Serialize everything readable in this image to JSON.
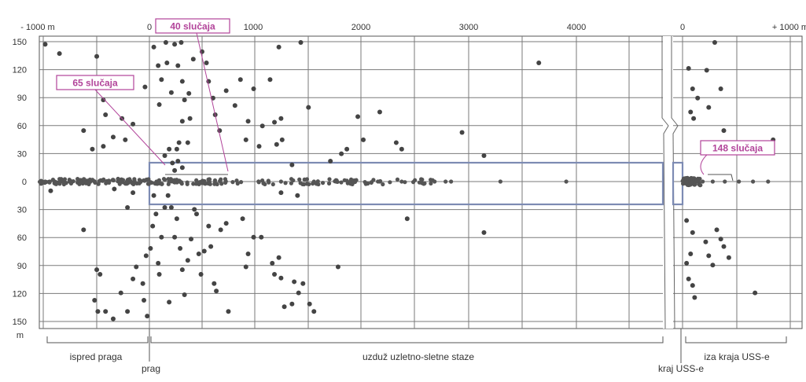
{
  "chart_data": {
    "type": "scatter",
    "x_ticks_top": [
      "- 1000 m",
      "0",
      "1000",
      "2000",
      "3000",
      "4000",
      "0",
      "+ 1000 m"
    ],
    "y_ticks": [
      "150",
      "120",
      "90",
      "60",
      "30",
      "0",
      "30",
      "60",
      "90",
      "120",
      "150"
    ],
    "y_unit": "m",
    "grid": true,
    "annotations": [
      {
        "text": "40 slučaja"
      },
      {
        "text": "65 slučaja"
      },
      {
        "text": "148 slučaja"
      }
    ],
    "bottom_labels": {
      "before_threshold": "ispred praga",
      "threshold": "prag",
      "along_runway": "uzduž uzletno-sletne staze",
      "runway_end": "kraj USS-e",
      "beyond_end": "iza kraja USS-e"
    },
    "scale_note": "x: main runway 0–4500 m; beyond-end section uses its own 0 to +1000 m; y: lateral offset m (above/below centerline)",
    "points_main": [
      [
        -950,
        148
      ],
      [
        -820,
        138
      ],
      [
        -600,
        55
      ],
      [
        -520,
        35
      ],
      [
        -480,
        135
      ],
      [
        -420,
        88
      ],
      [
        -400,
        72
      ],
      [
        -420,
        38
      ],
      [
        -330,
        48
      ],
      [
        -250,
        68
      ],
      [
        -220,
        45
      ],
      [
        -150,
        62
      ],
      [
        -40,
        102
      ],
      [
        40,
        145
      ],
      [
        80,
        125
      ],
      [
        110,
        110
      ],
      [
        90,
        83
      ],
      [
        150,
        150
      ],
      [
        160,
        128
      ],
      [
        200,
        96
      ],
      [
        230,
        148
      ],
      [
        260,
        125
      ],
      [
        290,
        150
      ],
      [
        300,
        108
      ],
      [
        320,
        88
      ],
      [
        300,
        65
      ],
      [
        350,
        42
      ],
      [
        370,
        68
      ],
      [
        250,
        35
      ],
      [
        180,
        35
      ],
      [
        270,
        42
      ],
      [
        140,
        28
      ],
      [
        210,
        20
      ],
      [
        230,
        12
      ],
      [
        260,
        22
      ],
      [
        300,
        15
      ],
      [
        360,
        95
      ],
      [
        400,
        132
      ],
      [
        480,
        140
      ],
      [
        520,
        128
      ],
      [
        540,
        108
      ],
      [
        580,
        90
      ],
      [
        600,
        72
      ],
      [
        640,
        55
      ],
      [
        700,
        98
      ],
      [
        780,
        82
      ],
      [
        830,
        110
      ],
      [
        880,
        45
      ],
      [
        900,
        65
      ],
      [
        950,
        100
      ],
      [
        1000,
        38
      ],
      [
        1030,
        60
      ],
      [
        1100,
        110
      ],
      [
        1140,
        64
      ],
      [
        1160,
        40
      ],
      [
        1180,
        145
      ],
      [
        1200,
        68
      ],
      [
        1210,
        45
      ],
      [
        1300,
        18
      ],
      [
        1380,
        150
      ],
      [
        1450,
        80
      ],
      [
        1650,
        22
      ],
      [
        1750,
        30
      ],
      [
        1800,
        35
      ],
      [
        1900,
        70
      ],
      [
        1950,
        45
      ],
      [
        2100,
        75
      ],
      [
        2250,
        42
      ],
      [
        2300,
        35
      ],
      [
        2850,
        53
      ],
      [
        3050,
        28
      ],
      [
        3550,
        128
      ],
      [
        -320,
        -8
      ],
      [
        -150,
        -12
      ],
      [
        -200,
        -28
      ],
      [
        -900,
        -10
      ],
      [
        -600,
        -52
      ],
      [
        -480,
        -95
      ],
      [
        -450,
        -100
      ],
      [
        -500,
        -128
      ],
      [
        -470,
        -140
      ],
      [
        -400,
        -140
      ],
      [
        -330,
        -148
      ],
      [
        -260,
        -120
      ],
      [
        -200,
        -140
      ],
      [
        -150,
        -105
      ],
      [
        -120,
        -92
      ],
      [
        -60,
        -110
      ],
      [
        -30,
        -80
      ],
      [
        -50,
        -128
      ],
      [
        -20,
        -145
      ],
      [
        10,
        -72
      ],
      [
        30,
        -48
      ],
      [
        40,
        -15
      ],
      [
        60,
        -35
      ],
      [
        80,
        -88
      ],
      [
        110,
        -60
      ],
      [
        90,
        -100
      ],
      [
        140,
        -28
      ],
      [
        170,
        -15
      ],
      [
        200,
        -28
      ],
      [
        250,
        -40
      ],
      [
        230,
        -60
      ],
      [
        280,
        -72
      ],
      [
        300,
        -95
      ],
      [
        180,
        -130
      ],
      [
        320,
        -122
      ],
      [
        350,
        -85
      ],
      [
        380,
        -62
      ],
      [
        410,
        -30
      ],
      [
        430,
        -35
      ],
      [
        450,
        -78
      ],
      [
        470,
        -100
      ],
      [
        500,
        -75
      ],
      [
        540,
        -48
      ],
      [
        560,
        -70
      ],
      [
        590,
        -110
      ],
      [
        610,
        -118
      ],
      [
        650,
        -52
      ],
      [
        700,
        -45
      ],
      [
        720,
        -140
      ],
      [
        850,
        -40
      ],
      [
        880,
        -92
      ],
      [
        900,
        -78
      ],
      [
        950,
        -60
      ],
      [
        1020,
        -60
      ],
      [
        1120,
        -88
      ],
      [
        1140,
        -100
      ],
      [
        1180,
        -82
      ],
      [
        1200,
        -104
      ],
      [
        1230,
        -135
      ],
      [
        1300,
        -132
      ],
      [
        1320,
        -108
      ],
      [
        1360,
        -120
      ],
      [
        1400,
        -110
      ],
      [
        1460,
        -132
      ],
      [
        1500,
        -140
      ],
      [
        1720,
        -92
      ],
      [
        2350,
        -40
      ],
      [
        3050,
        -55
      ],
      [
        1200,
        -12
      ],
      [
        1350,
        -15
      ]
    ],
    "points_end": [
      [
        60,
        122
      ],
      [
        100,
        100
      ],
      [
        150,
        90
      ],
      [
        80,
        75
      ],
      [
        110,
        68
      ],
      [
        240,
        120
      ],
      [
        260,
        80
      ],
      [
        320,
        150
      ],
      [
        380,
        100
      ],
      [
        410,
        55
      ],
      [
        470,
        40
      ],
      [
        520,
        35
      ],
      [
        900,
        45
      ],
      [
        40,
        -42
      ],
      [
        100,
        -55
      ],
      [
        80,
        -78
      ],
      [
        40,
        -88
      ],
      [
        60,
        -105
      ],
      [
        100,
        -112
      ],
      [
        120,
        -125
      ],
      [
        230,
        -65
      ],
      [
        260,
        -80
      ],
      [
        300,
        -90
      ],
      [
        340,
        -52
      ],
      [
        380,
        -62
      ],
      [
        410,
        -70
      ],
      [
        460,
        -82
      ],
      [
        720,
        -120
      ]
    ]
  }
}
